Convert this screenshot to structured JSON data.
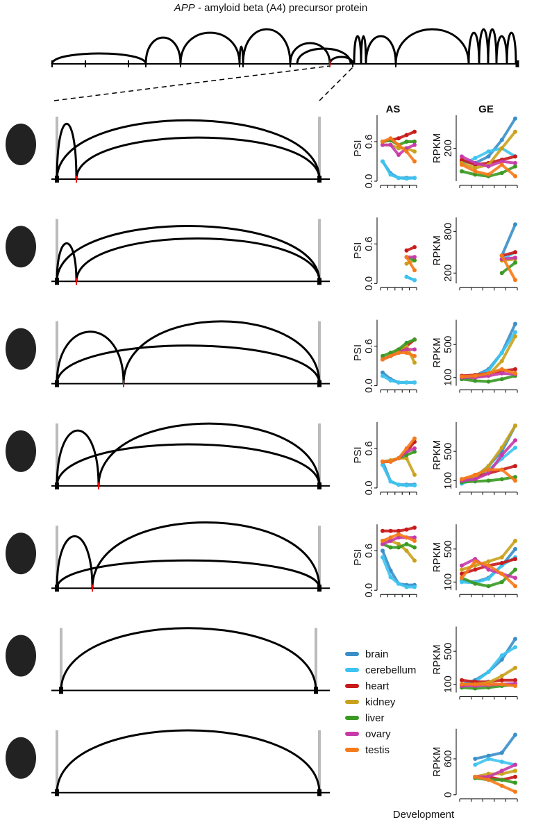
{
  "title_gene": "APP",
  "title_rest": " - amyloid beta (A4) precursor protein",
  "header_as": "AS",
  "header_ge": "GE",
  "x_label": "Development",
  "tissues": [
    {
      "name": "brain",
      "color": "#3a8fc9"
    },
    {
      "name": "cerebellum",
      "color": "#3ec4f0"
    },
    {
      "name": "heart",
      "color": "#c81a1a"
    },
    {
      "name": "kidney",
      "color": "#c9a21c"
    },
    {
      "name": "liver",
      "color": "#3a9a22"
    },
    {
      "name": "ovary",
      "color": "#c83aa8"
    },
    {
      "name": "testis",
      "color": "#f57a1a"
    }
  ],
  "as_panels": [
    {
      "y_label": "PSI",
      "ylim": [
        0,
        1
      ],
      "yticks": [
        {
          "value": 0,
          "label": "0.0"
        },
        {
          "value": 0.6,
          "label": "0.6"
        }
      ],
      "values": [
        [
          0.3,
          0.12,
          0.05,
          0.05,
          0.05
        ],
        [
          0.3,
          0.1,
          0.05,
          0.04,
          0.05
        ],
        [
          0.6,
          0.62,
          0.65,
          0.7,
          0.75
        ],
        [
          0.55,
          0.55,
          0.5,
          0.5,
          0.45
        ],
        [
          0.6,
          0.62,
          0.55,
          0.6,
          0.6
        ],
        [
          0.55,
          0.55,
          0.4,
          0.5,
          0.55
        ],
        [
          0.6,
          0.65,
          0.55,
          0.45,
          0.3
        ]
      ]
    },
    {
      "y_label": "PSI",
      "ylim": [
        0,
        1
      ],
      "yticks": [
        {
          "value": 0,
          "label": "0.0"
        },
        {
          "value": 0.6,
          "label": "0.6"
        }
      ],
      "values": [
        [
          null,
          null,
          null,
          0.1,
          0.05
        ],
        [
          null,
          null,
          null,
          0.1,
          0.05
        ],
        [
          null,
          null,
          null,
          0.5,
          0.55
        ],
        [
          null,
          null,
          null,
          0.3,
          0.35
        ],
        [
          null,
          null,
          null,
          0.4,
          0.35
        ],
        [
          null,
          null,
          null,
          0.4,
          0.4
        ],
        [
          null,
          null,
          null,
          0.4,
          0.2
        ]
      ]
    },
    {
      "y_label": "PSI",
      "ylim": [
        0,
        1
      ],
      "yticks": [
        {
          "value": 0,
          "label": "0.0"
        },
        {
          "value": 0.6,
          "label": "0.6"
        }
      ],
      "values": [
        [
          0.2,
          0.1,
          0.05,
          0.05,
          0.05
        ],
        [
          0.15,
          0.08,
          0.05,
          0.05,
          0.05
        ],
        [
          0.4,
          0.45,
          0.5,
          0.6,
          0.7
        ],
        [
          0.4,
          0.45,
          0.55,
          0.6,
          0.35
        ],
        [
          0.45,
          0.5,
          0.55,
          0.65,
          0.7
        ],
        [
          0.4,
          0.45,
          0.5,
          0.55,
          0.55
        ],
        [
          0.4,
          0.45,
          0.5,
          0.5,
          0.45
        ]
      ]
    },
    {
      "y_label": "PSI",
      "ylim": [
        0,
        1
      ],
      "yticks": [
        {
          "value": 0,
          "label": "0.0"
        },
        {
          "value": 0.6,
          "label": "0.6"
        }
      ],
      "values": [
        [
          0.4,
          0.1,
          0.05,
          0.05,
          0.05
        ],
        [
          0.35,
          0.1,
          0.05,
          0.04,
          0.04
        ],
        [
          0.4,
          0.4,
          0.45,
          0.55,
          0.7
        ],
        [
          0.4,
          0.42,
          0.45,
          0.45,
          0.2
        ],
        [
          0.4,
          0.4,
          0.45,
          0.5,
          0.55
        ],
        [
          0.4,
          0.4,
          0.45,
          0.55,
          0.6
        ],
        [
          0.4,
          0.4,
          0.45,
          0.6,
          0.75
        ]
      ]
    },
    {
      "y_label": "PSI",
      "ylim": [
        0,
        1
      ],
      "yticks": [
        {
          "value": 0,
          "label": "0.0"
        },
        {
          "value": 0.6,
          "label": "0.6"
        }
      ],
      "values": [
        [
          0.6,
          0.3,
          0.1,
          0.08,
          0.08
        ],
        [
          0.5,
          0.2,
          0.1,
          0.05,
          0.05
        ],
        [
          0.9,
          0.9,
          0.9,
          0.92,
          0.95
        ],
        [
          0.75,
          0.75,
          0.7,
          0.6,
          0.45
        ],
        [
          0.7,
          0.65,
          0.65,
          0.7,
          0.65
        ],
        [
          0.7,
          0.75,
          0.8,
          0.8,
          0.8
        ],
        [
          0.75,
          0.8,
          0.85,
          0.8,
          0.75
        ]
      ]
    }
  ],
  "ge_panels": [
    {
      "y_label": "RPKM",
      "ylim": [
        0,
        400
      ],
      "yticks": [
        200
      ],
      "values": [
        [
          120,
          110,
          150,
          250,
          380
        ],
        [
          100,
          140,
          180,
          200,
          150
        ],
        [
          130,
          100,
          110,
          130,
          150
        ],
        [
          110,
          80,
          100,
          200,
          300
        ],
        [
          60,
          40,
          30,
          50,
          90
        ],
        [
          150,
          110,
          90,
          120,
          110
        ],
        [
          100,
          60,
          40,
          100,
          30
        ]
      ]
    },
    {
      "y_label": "RPKM",
      "ylim": [
        50,
        1000
      ],
      "yticks": [
        200,
        800
      ],
      "values": [
        [
          null,
          null,
          null,
          450,
          900
        ],
        [
          null,
          null,
          null,
          400,
          500
        ],
        [
          null,
          null,
          null,
          450,
          500
        ],
        [
          null,
          null,
          null,
          380,
          400
        ],
        [
          null,
          null,
          null,
          200,
          350
        ],
        [
          null,
          null,
          null,
          400,
          420
        ],
        [
          null,
          null,
          null,
          450,
          100
        ]
      ]
    },
    {
      "y_label": "RPKM",
      "ylim": [
        0,
        800
      ],
      "yticks": [
        100,
        500
      ],
      "values": [
        [
          100,
          120,
          200,
          400,
          750
        ],
        [
          80,
          100,
          180,
          400,
          650
        ],
        [
          120,
          130,
          150,
          180,
          200
        ],
        [
          100,
          100,
          130,
          300,
          600
        ],
        [
          80,
          60,
          50,
          80,
          120
        ],
        [
          100,
          100,
          120,
          150,
          140
        ],
        [
          110,
          120,
          150,
          200,
          150
        ]
      ]
    },
    {
      "y_label": "RPKM",
      "ylim": [
        0,
        900
      ],
      "yticks": [
        100,
        500
      ],
      "values": [
        [
          80,
          150,
          300,
          500,
          850
        ],
        [
          60,
          120,
          250,
          400,
          550
        ],
        [
          120,
          150,
          200,
          250,
          300
        ],
        [
          100,
          150,
          300,
          550,
          850
        ],
        [
          80,
          90,
          100,
          120,
          150
        ],
        [
          100,
          120,
          200,
          450,
          650
        ],
        [
          120,
          180,
          250,
          250,
          100
        ]
      ]
    },
    {
      "y_label": "RPKM",
      "ylim": [
        0,
        800
      ],
      "yticks": [
        100,
        500
      ],
      "values": [
        [
          120,
          100,
          150,
          300,
          500
        ],
        [
          100,
          90,
          140,
          300,
          400
        ],
        [
          200,
          250,
          300,
          330,
          380
        ],
        [
          250,
          300,
          350,
          400,
          600
        ],
        [
          150,
          80,
          50,
          100,
          250
        ],
        [
          300,
          380,
          250,
          200,
          150
        ],
        [
          150,
          350,
          300,
          200,
          50
        ]
      ]
    },
    {
      "y_label": "RPKM",
      "ylim": [
        0,
        800
      ],
      "yticks": [
        100,
        500
      ],
      "values": [
        [
          100,
          150,
          250,
          400,
          650
        ],
        [
          80,
          130,
          250,
          450,
          550
        ],
        [
          150,
          130,
          130,
          150,
          150
        ],
        [
          100,
          100,
          120,
          200,
          300
        ],
        [
          60,
          50,
          60,
          80,
          100
        ],
        [
          80,
          80,
          90,
          100,
          110
        ],
        [
          100,
          100,
          100,
          100,
          80
        ]
      ]
    },
    {
      "y_label": "RPKM",
      "ylim": [
        0,
        1100
      ],
      "yticks": [
        0,
        600
      ],
      "values": [
        [
          null,
          600,
          650,
          700,
          1000
        ],
        [
          null,
          500,
          600,
          550,
          500
        ],
        [
          null,
          300,
          300,
          250,
          300
        ],
        [
          null,
          300,
          350,
          350,
          400
        ],
        [
          null,
          280,
          250,
          250,
          200
        ],
        [
          null,
          300,
          300,
          400,
          500
        ],
        [
          null,
          300,
          250,
          150,
          50
        ]
      ]
    }
  ]
}
